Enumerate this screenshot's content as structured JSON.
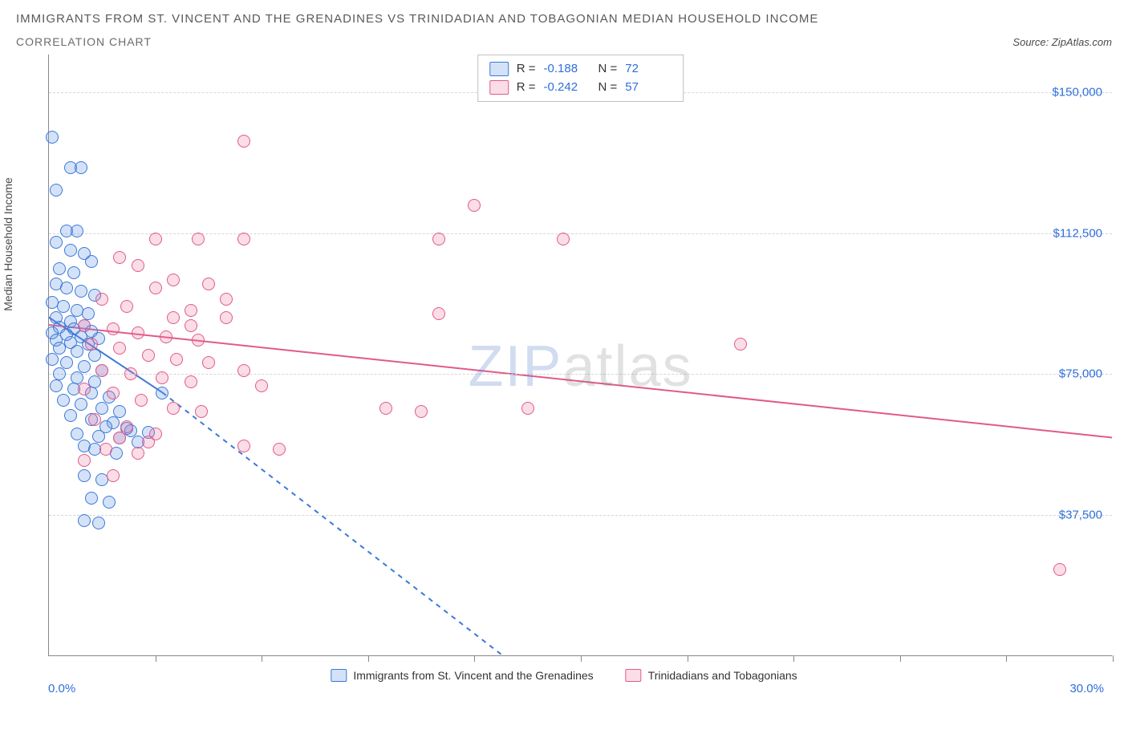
{
  "title": "IMMIGRANTS FROM ST. VINCENT AND THE GRENADINES VS TRINIDADIAN AND TOBAGONIAN MEDIAN HOUSEHOLD INCOME",
  "subtitle": "CORRELATION CHART",
  "source_label": "Source:",
  "source_name": "ZipAtlas.com",
  "y_axis_label": "Median Household Income",
  "watermark_a": "ZIP",
  "watermark_b": "atlas",
  "chart": {
    "type": "scatter",
    "background_color": "#ffffff",
    "grid_color": "#d5d5d5",
    "axis_color": "#888888",
    "tick_font_color": "#2e6fdb",
    "tick_fontsize": 15,
    "title_fontsize": 15,
    "title_color": "#5a5a5a",
    "x": {
      "min": 0.0,
      "max": 30.0,
      "min_label": "0.0%",
      "max_label": "30.0%",
      "ticks_at": [
        3,
        6,
        9,
        12,
        15,
        18,
        21,
        24,
        27,
        30
      ]
    },
    "y": {
      "min": 0,
      "max": 160000,
      "gridlines": [
        37500,
        75000,
        112500,
        150000
      ],
      "labels": [
        "$37,500",
        "$75,000",
        "$112,500",
        "$150,000"
      ]
    },
    "marker_radius": 8,
    "marker_border_width": 1.5,
    "marker_fill_opacity": 0.28,
    "series": [
      {
        "key": "svg_immigrants",
        "label": "Immigrants from St. Vincent and the Grenadines",
        "color": "#3b78d8",
        "fill": "rgba(100,150,230,0.28)",
        "R_label": "R =",
        "R": "-0.188",
        "N_label": "N =",
        "N": "72",
        "trend": {
          "x1": 0.0,
          "y1": 90000,
          "x2_solid": 3.2,
          "y2_solid": 70000,
          "x2_dash": 12.8,
          "y2_dash": 0,
          "width": 2,
          "dash_pattern": "6,6"
        },
        "points": [
          [
            0.1,
            138000
          ],
          [
            0.6,
            130000
          ],
          [
            0.9,
            130000
          ],
          [
            0.2,
            124000
          ],
          [
            0.5,
            113000
          ],
          [
            0.8,
            113000
          ],
          [
            0.2,
            110000
          ],
          [
            0.6,
            108000
          ],
          [
            1.0,
            107000
          ],
          [
            1.2,
            105000
          ],
          [
            0.3,
            103000
          ],
          [
            0.7,
            102000
          ],
          [
            0.2,
            99000
          ],
          [
            0.5,
            98000
          ],
          [
            0.9,
            97000
          ],
          [
            1.3,
            96000
          ],
          [
            0.1,
            94000
          ],
          [
            0.4,
            93000
          ],
          [
            0.8,
            92000
          ],
          [
            1.1,
            91000
          ],
          [
            0.2,
            90000
          ],
          [
            0.6,
            89000
          ],
          [
            1.0,
            88000
          ],
          [
            0.3,
            87500
          ],
          [
            0.7,
            87000
          ],
          [
            1.2,
            86500
          ],
          [
            0.1,
            86000
          ],
          [
            0.5,
            85500
          ],
          [
            0.9,
            85000
          ],
          [
            1.4,
            84500
          ],
          [
            0.2,
            84000
          ],
          [
            0.6,
            83500
          ],
          [
            1.1,
            83000
          ],
          [
            0.3,
            82000
          ],
          [
            0.8,
            81000
          ],
          [
            1.3,
            80000
          ],
          [
            0.1,
            79000
          ],
          [
            0.5,
            78000
          ],
          [
            1.0,
            77000
          ],
          [
            1.5,
            76000
          ],
          [
            0.3,
            75000
          ],
          [
            0.8,
            74000
          ],
          [
            1.3,
            73000
          ],
          [
            0.2,
            72000
          ],
          [
            0.7,
            71000
          ],
          [
            1.2,
            70000
          ],
          [
            1.7,
            69000
          ],
          [
            0.4,
            68000
          ],
          [
            0.9,
            67000
          ],
          [
            1.5,
            66000
          ],
          [
            2.0,
            65000
          ],
          [
            0.6,
            64000
          ],
          [
            1.2,
            63000
          ],
          [
            1.8,
            62000
          ],
          [
            2.3,
            60000
          ],
          [
            0.8,
            59000
          ],
          [
            1.4,
            58500
          ],
          [
            2.0,
            58000
          ],
          [
            2.5,
            57000
          ],
          [
            1.0,
            56000
          ],
          [
            1.6,
            61000
          ],
          [
            2.2,
            60500
          ],
          [
            2.8,
            59500
          ],
          [
            1.3,
            55000
          ],
          [
            1.9,
            54000
          ],
          [
            3.2,
            70000
          ],
          [
            1.0,
            48000
          ],
          [
            1.5,
            47000
          ],
          [
            1.2,
            42000
          ],
          [
            1.7,
            41000
          ],
          [
            1.0,
            36000
          ],
          [
            1.4,
            35500
          ]
        ]
      },
      {
        "key": "trinidadians",
        "label": "Trinidadians and Tobagonians",
        "color": "#e05a8a",
        "fill": "rgba(235,120,160,0.25)",
        "R_label": "R =",
        "R": "-0.242",
        "N_label": "N =",
        "N": "57",
        "trend": {
          "x1": 0.0,
          "y1": 88000,
          "x2_solid": 30.0,
          "y2_solid": 58000,
          "x2_dash": 30.0,
          "y2_dash": 58000,
          "width": 2,
          "dash_pattern": ""
        },
        "points": [
          [
            5.5,
            137000
          ],
          [
            12.0,
            120000
          ],
          [
            3.0,
            111000
          ],
          [
            4.2,
            111000
          ],
          [
            5.5,
            111000
          ],
          [
            11.0,
            111000
          ],
          [
            14.5,
            111000
          ],
          [
            2.0,
            106000
          ],
          [
            2.5,
            104000
          ],
          [
            3.5,
            100000
          ],
          [
            4.5,
            99000
          ],
          [
            1.5,
            95000
          ],
          [
            2.2,
            93000
          ],
          [
            3.0,
            98000
          ],
          [
            4.0,
            92000
          ],
          [
            5.0,
            90000
          ],
          [
            11.0,
            91000
          ],
          [
            1.0,
            88000
          ],
          [
            1.8,
            87000
          ],
          [
            2.5,
            86000
          ],
          [
            3.3,
            85000
          ],
          [
            4.2,
            84000
          ],
          [
            1.2,
            83000
          ],
          [
            2.0,
            82000
          ],
          [
            2.8,
            80000
          ],
          [
            3.6,
            79000
          ],
          [
            4.5,
            78000
          ],
          [
            5.5,
            76000
          ],
          [
            1.5,
            76000
          ],
          [
            2.3,
            75000
          ],
          [
            3.2,
            74000
          ],
          [
            4.0,
            73000
          ],
          [
            19.5,
            83000
          ],
          [
            1.0,
            71000
          ],
          [
            1.8,
            70000
          ],
          [
            2.6,
            68000
          ],
          [
            3.5,
            66000
          ],
          [
            4.3,
            65000
          ],
          [
            1.3,
            63000
          ],
          [
            2.2,
            61000
          ],
          [
            3.0,
            59000
          ],
          [
            5.5,
            56000
          ],
          [
            6.5,
            55000
          ],
          [
            1.6,
            55000
          ],
          [
            2.5,
            54000
          ],
          [
            1.0,
            52000
          ],
          [
            9.5,
            66000
          ],
          [
            10.5,
            65000
          ],
          [
            13.5,
            66000
          ],
          [
            1.8,
            48000
          ],
          [
            2.0,
            58000
          ],
          [
            2.8,
            57000
          ],
          [
            3.5,
            90000
          ],
          [
            4.0,
            88000
          ],
          [
            5.0,
            95000
          ],
          [
            6.0,
            72000
          ],
          [
            28.5,
            23000
          ]
        ]
      }
    ]
  }
}
